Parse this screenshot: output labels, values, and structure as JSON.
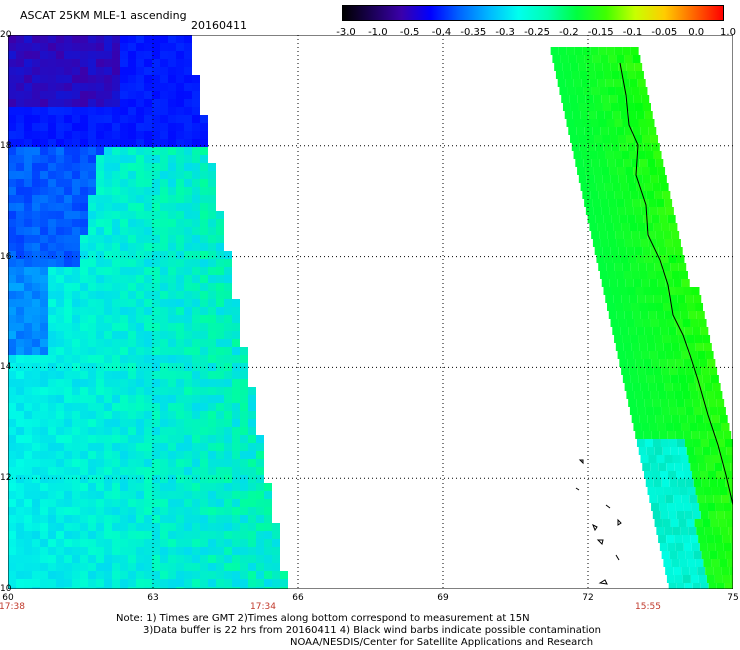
{
  "header": {
    "title": "ASCAT 25KM MLE-1 ascending",
    "date": "20160411"
  },
  "colorbar": {
    "labels": [
      "-3.0",
      "-1.0",
      "-0.5",
      "-0.4",
      "-0.35",
      "-0.3",
      "-0.25",
      "-0.2",
      "-0.15",
      "-0.1",
      "-0.05",
      "0.0",
      "1.0"
    ],
    "colors": [
      "#000000",
      "#1a0055",
      "#3a00aa",
      "#0000ff",
      "#0066ff",
      "#00b8ff",
      "#00ffee",
      "#00ffb0",
      "#00ff40",
      "#40ff00",
      "#c8ff00",
      "#ffcc00",
      "#ff6600",
      "#ff0000"
    ]
  },
  "map": {
    "x_ticks": [
      "60",
      "63",
      "66",
      "69",
      "72",
      "75"
    ],
    "y_ticks": [
      "20",
      "18",
      "16",
      "14",
      "12",
      "10"
    ],
    "pass_times": [
      "17:38",
      "17:34",
      "15:55"
    ]
  },
  "notes": {
    "line1": "Note: 1) Times are GMT 2)Times along bottom correspond to measurement at 15N",
    "line2": "3)Data buffer is 22 hrs from 20160411 4) Black wind barbs indicate possible contamination",
    "line3": "NOAA/NESDIS/Center for Satellite Applications and Research"
  }
}
